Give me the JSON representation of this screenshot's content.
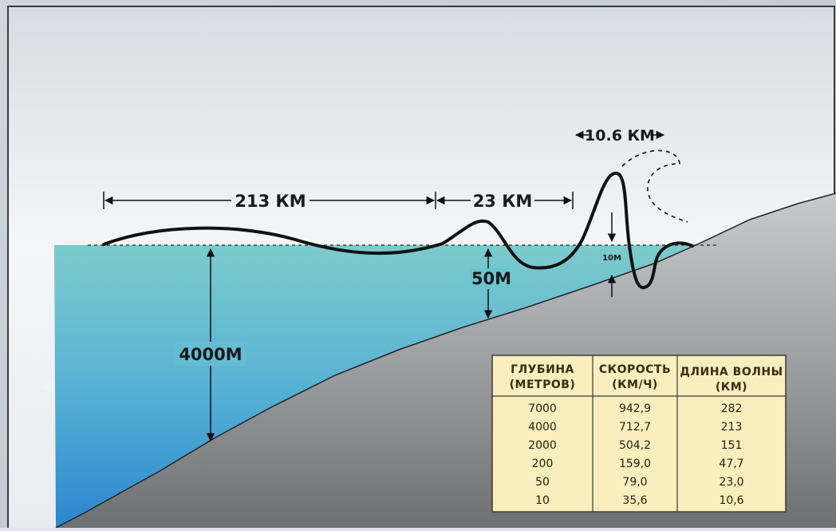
{
  "labels": {
    "dist_213": "213 КМ",
    "dist_23": "23 КМ",
    "dist_10_6": "10.6 КМ",
    "depth_4000": "4000М",
    "depth_50": "50М",
    "height_10": "10М"
  },
  "table": {
    "headers": [
      [
        "ГЛУБИНА",
        "(МЕТРОВ)"
      ],
      [
        "СКОРОСТЬ",
        "(КМ/Ч)"
      ],
      [
        "ДЛИНА ВОЛНЫ",
        "(КМ)"
      ]
    ],
    "rows": [
      [
        "7000",
        "942,9",
        "282"
      ],
      [
        "4000",
        "712,7",
        "213"
      ],
      [
        "2000",
        "504,2",
        "151"
      ],
      [
        "200",
        "159,0",
        "47,7"
      ],
      [
        "50",
        "79,0",
        "23,0"
      ],
      [
        "10",
        "35,6",
        "10,6"
      ]
    ]
  },
  "colors": {
    "water_top": "#76c6cc",
    "water_bottom": "#2d8ed2",
    "table_bg": "#f8eebe",
    "wave": "#111111"
  }
}
